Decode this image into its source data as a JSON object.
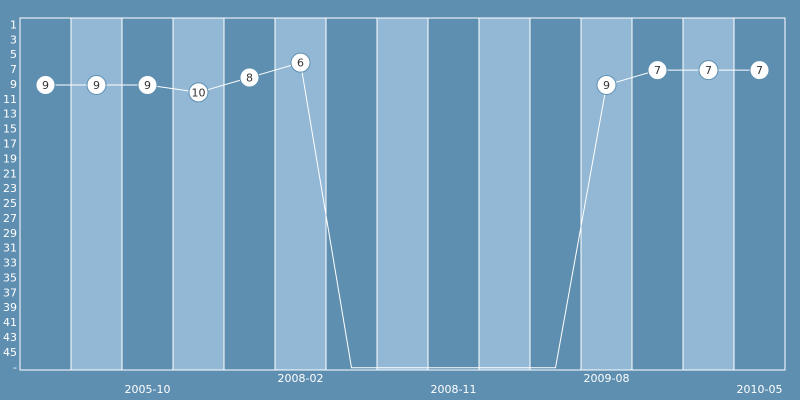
{
  "chart_data": {
    "type": "rank-line",
    "categories": [
      null,
      null,
      "2005-10",
      null,
      null,
      "2008-02",
      null,
      null,
      "2008-11",
      null,
      null,
      "2009-08",
      null,
      null,
      "2010-05"
    ],
    "values": [
      9,
      9,
      9,
      10,
      8,
      6,
      47,
      47,
      47,
      47,
      47,
      9,
      7,
      7,
      7
    ],
    "ylim": [
      0,
      47.3
    ],
    "yticks": [
      1,
      3,
      5,
      7,
      9,
      11,
      13,
      15,
      17,
      19,
      21,
      23,
      25,
      27,
      29,
      31,
      33,
      35,
      37,
      39,
      41,
      43,
      45,
      {
        "value": 47,
        "label": "-"
      }
    ],
    "inverted": true,
    "band_colors": [
      "#5f8fb0",
      "#92b8d6"
    ],
    "line_color": "#ffffff"
  }
}
